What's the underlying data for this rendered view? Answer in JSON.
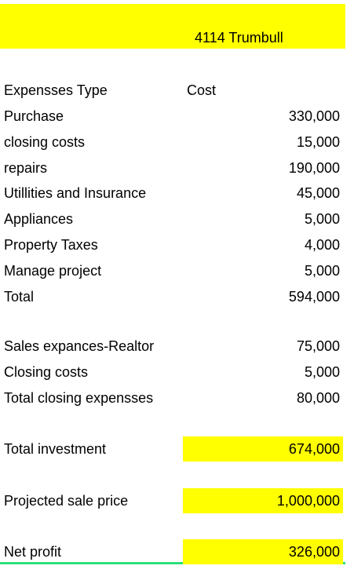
{
  "header": {
    "title": "4114 Trumbull"
  },
  "table": {
    "columns": [
      "Expensses Type",
      "Cost"
    ],
    "expenses": [
      [
        "Purchase",
        "330,000"
      ],
      [
        "closing costs",
        "15,000"
      ],
      [
        "repairs",
        "190,000"
      ],
      [
        "Utillities and Insurance",
        "45,000"
      ],
      [
        "Appliances",
        "5,000"
      ],
      [
        "Property Taxes",
        "4,000"
      ],
      [
        "Manage project",
        "5,000"
      ],
      [
        "Total",
        "594,000"
      ]
    ],
    "closing": [
      [
        "Sales expances-Realtor",
        "75,000"
      ],
      [
        "Closing costs",
        "5,000"
      ],
      [
        "Total closing expensses",
        "80,000"
      ]
    ],
    "summary": [
      [
        "Total investment",
        "674,000"
      ],
      [
        "Projected sale price",
        "1,000,000"
      ],
      [
        "Net profit",
        "326,000"
      ]
    ]
  }
}
